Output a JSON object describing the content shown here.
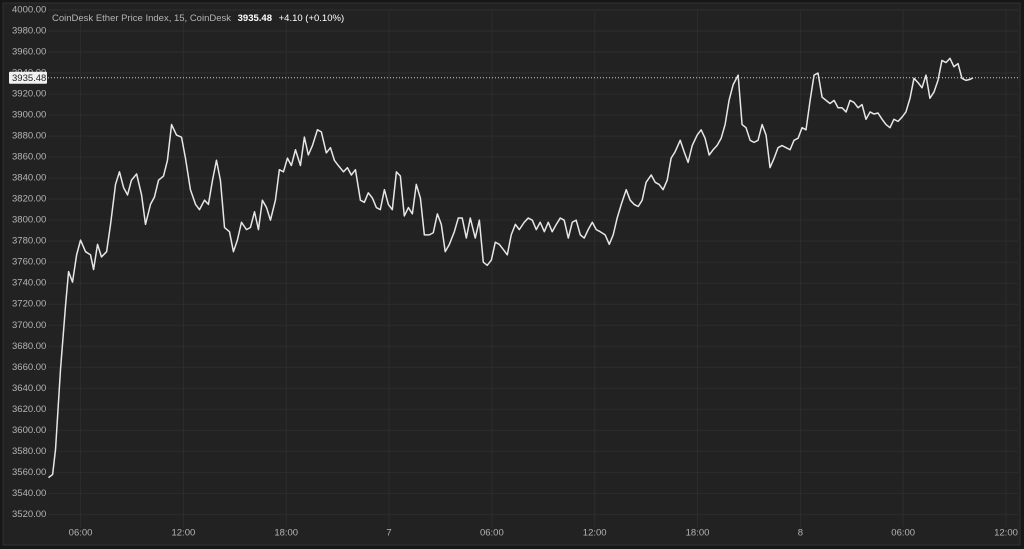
{
  "chart_data": {
    "type": "line",
    "title": "CoinDesk Ether Price Index, 15, CoinDesk",
    "change": "+4.10 (+0.10%)",
    "price_line": 3935.48,
    "color": "#e6e6e6",
    "grid": true,
    "x": [
      4.13,
      4.37,
      4.54,
      4.83,
      5.13,
      5.3,
      5.53,
      5.77,
      6.0,
      6.29,
      6.58,
      6.76,
      6.99,
      7.22,
      7.52,
      7.75,
      8.04,
      8.27,
      8.51,
      8.74,
      8.97,
      9.27,
      9.56,
      9.79,
      10.08,
      10.31,
      10.55,
      10.84,
      11.07,
      11.31,
      11.6,
      11.89,
      12.12,
      12.41,
      12.71,
      12.94,
      13.23,
      13.46,
      13.7,
      13.93,
      14.16,
      14.4,
      14.69,
      14.92,
      15.15,
      15.39,
      15.68,
      15.91,
      16.15,
      16.38,
      16.61,
      16.85,
      17.08,
      17.37,
      17.6,
      17.84,
      18.07,
      18.3,
      18.54,
      18.83,
      19.06,
      19.29,
      19.53,
      19.82,
      20.05,
      20.34,
      20.58,
      20.81,
      21.04,
      21.34,
      21.57,
      21.8,
      22.04,
      22.33,
      22.56,
      22.79,
      23.03,
      23.26,
      23.49,
      23.73,
      23.96,
      24.19,
      24.43,
      24.66,
      24.89,
      25.13,
      25.36,
      25.59,
      25.83,
      26.06,
      26.35,
      26.58,
      26.82,
      27.05,
      27.28,
      27.52,
      27.81,
      28.04,
      28.27,
      28.51,
      28.74,
      29.03,
      29.27,
      29.5,
      29.73,
      29.97,
      30.2,
      30.43,
      30.67,
      30.9,
      31.13,
      31.37,
      31.6,
      31.89,
      32.12,
      32.36,
      32.59,
      32.82,
      33.06,
      33.29,
      33.52,
      33.76,
      33.99,
      34.22,
      34.46,
      34.69,
      34.92,
      35.16,
      35.39,
      35.62,
      35.86,
      36.09,
      36.32,
      36.61,
      36.85,
      37.08,
      37.31,
      37.55,
      37.84,
      38.07,
      38.3,
      38.54,
      38.77,
      39.0,
      39.3,
      39.53,
      39.76,
      39.99,
      40.23,
      40.46,
      40.69,
      40.99,
      41.22,
      41.45,
      41.69,
      41.98,
      42.21,
      42.44,
      42.68,
      42.91,
      43.14,
      43.38,
      43.61,
      43.84,
      44.08,
      44.37,
      44.6,
      44.83,
      45.07,
      45.3,
      45.53,
      45.77,
      46.0,
      46.23,
      46.47,
      46.7,
      46.93,
      47.17,
      47.4,
      47.63,
      47.87,
      48.1,
      48.33,
      48.57,
      48.8,
      49.03,
      49.27,
      49.5,
      49.73,
      49.97,
      50.2,
      50.43,
      50.67,
      50.9,
      51.13,
      51.37,
      51.6,
      51.83,
      52.07,
      52.3,
      52.53,
      52.77,
      53.0,
      53.23,
      53.46,
      53.7,
      53.93,
      54.16,
      54.4,
      54.63,
      54.86,
      55.1,
      55.33,
      55.56,
      55.8,
      56.03,
      56.26,
      56.5,
      56.73,
      56.96,
      57.2,
      57.43,
      57.66,
      57.9,
      58.07
    ],
    "values": [
      3555,
      3558,
      3582,
      3658,
      3720,
      3751,
      3741,
      3767,
      3781,
      3770,
      3767,
      3753,
      3777,
      3765,
      3770,
      3796,
      3834,
      3846,
      3831,
      3824,
      3838,
      3844,
      3824,
      3796,
      3815,
      3822,
      3838,
      3842,
      3857,
      3891,
      3881,
      3879,
      3859,
      3829,
      3815,
      3810,
      3819,
      3815,
      3838,
      3857,
      3838,
      3793,
      3789,
      3770,
      3781,
      3798,
      3791,
      3793,
      3808,
      3791,
      3819,
      3812,
      3800,
      3819,
      3848,
      3846,
      3859,
      3852,
      3867,
      3852,
      3879,
      3862,
      3871,
      3886,
      3884,
      3864,
      3869,
      3857,
      3852,
      3846,
      3850,
      3843,
      3848,
      3819,
      3817,
      3826,
      3821,
      3812,
      3810,
      3829,
      3815,
      3810,
      3846,
      3842,
      3804,
      3812,
      3806,
      3834,
      3821,
      3786,
      3786,
      3788,
      3806,
      3796,
      3770,
      3777,
      3789,
      3802,
      3802,
      3783,
      3802,
      3783,
      3800,
      3760,
      3757,
      3762,
      3779,
      3777,
      3772,
      3767,
      3786,
      3796,
      3791,
      3798,
      3802,
      3800,
      3791,
      3798,
      3789,
      3798,
      3789,
      3796,
      3802,
      3800,
      3783,
      3798,
      3800,
      3786,
      3783,
      3791,
      3798,
      3791,
      3789,
      3786,
      3777,
      3786,
      3802,
      3815,
      3829,
      3819,
      3815,
      3813,
      3819,
      3836,
      3843,
      3836,
      3834,
      3829,
      3838,
      3859,
      3865,
      3876,
      3865,
      3855,
      3871,
      3881,
      3886,
      3878,
      3862,
      3867,
      3871,
      3878,
      3891,
      3914,
      3929,
      3938,
      3891,
      3888,
      3876,
      3874,
      3876,
      3891,
      3881,
      3850,
      3859,
      3869,
      3871,
      3869,
      3867,
      3876,
      3878,
      3888,
      3886,
      3914,
      3938,
      3940,
      3917,
      3914,
      3911,
      3914,
      3907,
      3907,
      3903,
      3914,
      3912,
      3907,
      3910,
      3896,
      3903,
      3901,
      3902,
      3896,
      3891,
      3888,
      3896,
      3894,
      3898,
      3903,
      3916,
      3935,
      3931,
      3926,
      3938,
      3916,
      3922,
      3933,
      3952,
      3950,
      3954,
      3946,
      3949,
      3935,
      3933,
      3934,
      3935.48
    ],
    "xlim": [
      4.1,
      60.7
    ],
    "xticks": [
      {
        "value": 6,
        "label": "06:00"
      },
      {
        "value": 12,
        "label": "12:00"
      },
      {
        "value": 18,
        "label": "18:00"
      },
      {
        "value": 24,
        "label": "7"
      },
      {
        "value": 30,
        "label": "06:00"
      },
      {
        "value": 36,
        "label": "12:00"
      },
      {
        "value": 42,
        "label": "18:00"
      },
      {
        "value": 48,
        "label": "8"
      },
      {
        "value": 54,
        "label": "06:00"
      },
      {
        "value": 60,
        "label": "12:00"
      }
    ],
    "ylim": [
      3508,
      4000
    ],
    "yticks": [
      {
        "value": 3520,
        "label": "3520.00"
      },
      {
        "value": 3540,
        "label": "3540.00"
      },
      {
        "value": 3560,
        "label": "3560.00"
      },
      {
        "value": 3580,
        "label": "3580.00"
      },
      {
        "value": 3600,
        "label": "3600.00"
      },
      {
        "value": 3620,
        "label": "3620.00"
      },
      {
        "value": 3640,
        "label": "3640.00"
      },
      {
        "value": 3660,
        "label": "3660.00"
      },
      {
        "value": 3680,
        "label": "3680.00"
      },
      {
        "value": 3700,
        "label": "3700.00"
      },
      {
        "value": 3720,
        "label": "3720.00"
      },
      {
        "value": 3740,
        "label": "3740.00"
      },
      {
        "value": 3760,
        "label": "3760.00"
      },
      {
        "value": 3780,
        "label": "3780.00"
      },
      {
        "value": 3800,
        "label": "3800.00"
      },
      {
        "value": 3820,
        "label": "3820.00"
      },
      {
        "value": 3840,
        "label": "3840.00"
      },
      {
        "value": 3860,
        "label": "3860.00"
      },
      {
        "value": 3880,
        "label": "3880.00"
      },
      {
        "value": 3900,
        "label": "3900.00"
      },
      {
        "value": 3920,
        "label": "3920.00"
      },
      {
        "value": 3940,
        "label": "3940.00"
      },
      {
        "value": 3960,
        "label": "3960.00"
      },
      {
        "value": 3980,
        "label": "3980.00"
      },
      {
        "value": 4000,
        "label": "4000.00"
      }
    ]
  }
}
